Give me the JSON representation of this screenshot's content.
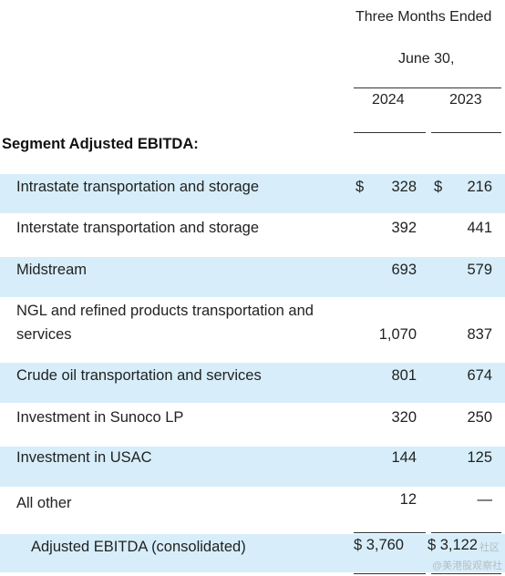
{
  "header": {
    "period_line1": "Three Months Ended",
    "period_line2": "June 30,",
    "year_current": "2024",
    "year_prior": "2023"
  },
  "section_title": "Segment Adjusted EBITDA:",
  "rows": [
    {
      "label": "Intrastate transportation and storage",
      "currency_current": "$",
      "value_current": "328",
      "currency_prior": "$",
      "value_prior": "216"
    },
    {
      "label": "Interstate transportation and storage",
      "value_current": "392",
      "value_prior": "441"
    },
    {
      "label": "Midstream",
      "value_current": "693",
      "value_prior": "579"
    },
    {
      "label_line1": "NGL and refined products transportation and",
      "label_line2": "services",
      "value_current": "1,070",
      "value_prior": "837"
    },
    {
      "label": "Crude oil transportation and services",
      "value_current": "801",
      "value_prior": "674"
    },
    {
      "label": "Investment in Sunoco LP",
      "value_current": "320",
      "value_prior": "250"
    },
    {
      "label": "Investment in USAC",
      "value_current": "144",
      "value_prior": "125"
    },
    {
      "label": "All other",
      "value_current": "12",
      "value_prior": "—"
    }
  ],
  "total": {
    "label": "Adjusted EBITDA (consolidated)",
    "value_current": "$ 3,760",
    "value_prior": "$ 3,122"
  },
  "watermark": {
    "line1": "社区",
    "line2": "@美港股观察社"
  },
  "colors": {
    "row_shade": "#d7eefa",
    "text": "#222222"
  }
}
